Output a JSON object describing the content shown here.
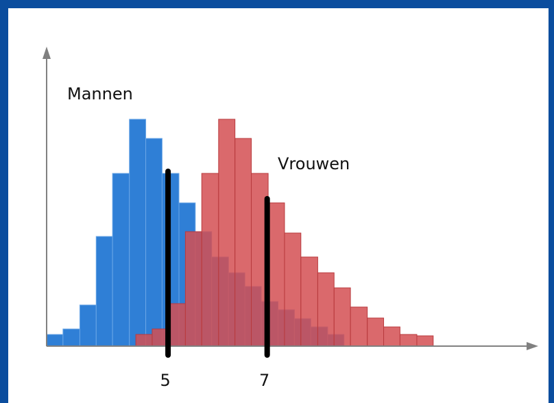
{
  "chart_data": {
    "type": "histogram",
    "xlim": [
      2.55,
      12.4
    ],
    "ylim": [
      0,
      435
    ],
    "xticks": [
      5,
      7
    ],
    "series": [
      {
        "name": "Mannen",
        "color": "#2f7fd6",
        "bins": [
          2.55,
          2.88,
          3.22,
          3.55,
          3.88,
          4.22,
          4.55,
          4.88,
          5.22,
          5.55,
          5.88,
          6.22,
          6.55,
          6.88,
          7.22,
          7.55,
          7.88,
          8.22,
          8.55
        ],
        "values": [
          17,
          25,
          60,
          160,
          252,
          331,
          303,
          252,
          209,
          167,
          130,
          107,
          87,
          65,
          53,
          40,
          28,
          17
        ]
      },
      {
        "name": "Vrouwen",
        "color": "#d44f52",
        "bins": [
          4.35,
          4.68,
          5.02,
          5.35,
          5.68,
          6.02,
          6.35,
          6.68,
          7.02,
          7.35,
          7.68,
          8.02,
          8.35,
          8.68,
          9.02,
          9.35,
          9.68,
          10.02,
          10.35
        ],
        "values": [
          17,
          25,
          62,
          167,
          252,
          331,
          303,
          252,
          209,
          165,
          130,
          107,
          85,
          57,
          41,
          28,
          17,
          15
        ]
      }
    ]
  }
}
